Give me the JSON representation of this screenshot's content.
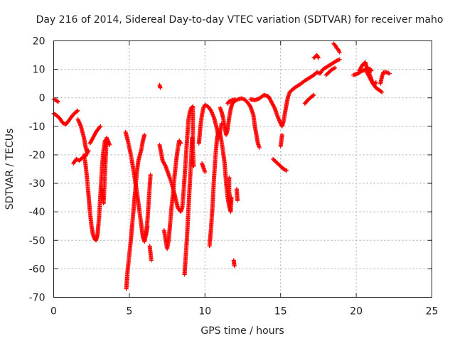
{
  "chart_data": {
    "type": "scatter",
    "title": "Day 216 of 2014, Sidereal Day-to-day VTEC variation (SDTVAR) for receiver maho",
    "xlabel": "GPS time / hours",
    "ylabel": "SDTVAR / TECUs",
    "xlim": [
      0,
      25
    ],
    "ylim": [
      -70,
      20
    ],
    "xticks": [
      0,
      5,
      10,
      15,
      20,
      25
    ],
    "yticks": [
      -70,
      -60,
      -50,
      -40,
      -30,
      -20,
      -10,
      0,
      10,
      20
    ],
    "grid": true,
    "marker": "+",
    "series": [
      {
        "name": "SDTVAR",
        "color": "#ff0000",
        "segments": [
          [
            [
              0.0,
              -5.5
            ],
            [
              0.2,
              -6.2
            ],
            [
              0.4,
              -7.2
            ],
            [
              0.6,
              -8.8
            ],
            [
              0.8,
              -9.3
            ],
            [
              1.0,
              -8.0
            ],
            [
              1.2,
              -6.5
            ],
            [
              1.4,
              -5.3
            ],
            [
              1.6,
              -4.5
            ]
          ],
          [
            [
              0.0,
              -0.5
            ],
            [
              0.2,
              -1.0
            ],
            [
              0.3,
              -1.4
            ]
          ],
          [
            [
              1.3,
              -23.0
            ],
            [
              1.5,
              -21.5
            ],
            [
              1.7,
              -22.0
            ],
            [
              1.9,
              -21.0
            ],
            [
              2.1,
              -20.5
            ],
            [
              2.3,
              -18.5
            ]
          ],
          [
            [
              1.6,
              -7.5
            ],
            [
              1.8,
              -10.0
            ],
            [
              2.0,
              -14.0
            ],
            [
              2.1,
              -17.0
            ],
            [
              2.2,
              -19.0
            ]
          ],
          [
            [
              2.0,
              -20.0
            ],
            [
              2.1,
              -23.0
            ],
            [
              2.2,
              -28.0
            ],
            [
              2.3,
              -34.0
            ],
            [
              2.4,
              -40.0
            ],
            [
              2.5,
              -45.0
            ],
            [
              2.6,
              -48.0
            ],
            [
              2.7,
              -49.5
            ],
            [
              2.8,
              -50.0
            ],
            [
              2.9,
              -48.0
            ],
            [
              3.0,
              -42.0
            ],
            [
              3.1,
              -33.0
            ],
            [
              3.2,
              -24.0
            ],
            [
              3.3,
              -18.0
            ],
            [
              3.4,
              -15.0
            ],
            [
              3.5,
              -14.5
            ],
            [
              3.6,
              -15.5
            ]
          ],
          [
            [
              2.4,
              -16.0
            ],
            [
              2.6,
              -14.0
            ],
            [
              2.8,
              -12.0
            ],
            [
              3.0,
              -10.5
            ],
            [
              3.1,
              -10.0
            ]
          ],
          [
            [
              3.2,
              -32.0
            ],
            [
              3.3,
              -37.0
            ],
            [
              3.5,
              -14.0
            ],
            [
              3.7,
              -16.5
            ]
          ],
          [
            [
              4.75,
              -12.0
            ],
            [
              4.9,
              -15.0
            ],
            [
              5.1,
              -20.0
            ],
            [
              5.2,
              -23.0
            ],
            [
              5.35,
              -28.0
            ],
            [
              5.5,
              -33.0
            ],
            [
              5.6,
              -37.0
            ],
            [
              5.75,
              -43.0
            ],
            [
              5.9,
              -49.0
            ],
            [
              6.0,
              -50.5
            ],
            [
              6.1,
              -48.0
            ],
            [
              6.2,
              -45.0
            ]
          ],
          [
            [
              4.8,
              -67.0
            ],
            [
              4.85,
              -63.0
            ],
            [
              4.9,
              -60.0
            ],
            [
              5.0,
              -55.0
            ],
            [
              5.1,
              -50.0
            ],
            [
              5.2,
              -44.0
            ],
            [
              5.3,
              -38.0
            ],
            [
              5.4,
              -32.0
            ],
            [
              5.5,
              -26.0
            ],
            [
              5.6,
              -22.0
            ],
            [
              5.8,
              -18.0
            ],
            [
              5.9,
              -15.0
            ],
            [
              6.0,
              -13.0
            ]
          ],
          [
            [
              6.1,
              -48.0
            ],
            [
              6.2,
              -43.0
            ],
            [
              6.3,
              -35.0
            ],
            [
              6.4,
              -27.0
            ]
          ],
          [
            [
              6.35,
              -52.0
            ],
            [
              6.45,
              -57.0
            ]
          ],
          [
            [
              7.0,
              4.5
            ],
            [
              7.05,
              3.5
            ]
          ],
          [
            [
              7.0,
              -16.5
            ],
            [
              7.2,
              -22.0
            ],
            [
              7.4,
              -24.0
            ],
            [
              7.6,
              -27.0
            ],
            [
              7.8,
              -30.0
            ],
            [
              8.0,
              -34.0
            ],
            [
              8.2,
              -38.5
            ],
            [
              8.4,
              -40.0
            ],
            [
              8.5,
              -38.5
            ],
            [
              8.6,
              -32.0
            ],
            [
              8.7,
              -24.0
            ],
            [
              8.8,
              -16.0
            ],
            [
              8.9,
              -8.0
            ],
            [
              9.0,
              -5.0
            ],
            [
              9.1,
              -3.5
            ],
            [
              9.2,
              -3.0
            ]
          ],
          [
            [
              7.3,
              -46.5
            ],
            [
              7.4,
              -50.0
            ],
            [
              7.5,
              -53.0
            ],
            [
              7.6,
              -50.0
            ],
            [
              7.7,
              -44.0
            ],
            [
              7.8,
              -38.0
            ],
            [
              7.9,
              -33.0
            ],
            [
              8.0,
              -27.0
            ],
            [
              8.1,
              -22.0
            ],
            [
              8.2,
              -18.0
            ],
            [
              8.3,
              -15.0
            ],
            [
              8.4,
              -16.0
            ]
          ],
          [
            [
              8.65,
              -62.0
            ],
            [
              8.7,
              -58.0
            ],
            [
              8.8,
              -50.0
            ],
            [
              8.9,
              -40.0
            ],
            [
              9.0,
              -30.0
            ],
            [
              9.1,
              -20.0
            ],
            [
              9.15,
              -14.0
            ]
          ],
          [
            [
              9.2,
              -3.5
            ],
            [
              9.2,
              -10.0
            ],
            [
              9.2,
              -18.0
            ],
            [
              9.25,
              -24.0
            ]
          ],
          [
            [
              9.6,
              -16.0
            ],
            [
              9.7,
              -10.0
            ],
            [
              9.8,
              -6.0
            ],
            [
              9.9,
              -3.5
            ],
            [
              10.0,
              -2.5
            ],
            [
              10.2,
              -3.0
            ],
            [
              10.4,
              -4.5
            ],
            [
              10.6,
              -7.0
            ],
            [
              10.8,
              -11.0
            ],
            [
              10.9,
              -14.0
            ],
            [
              11.0,
              -12.0
            ],
            [
              11.1,
              -9.0
            ]
          ],
          [
            [
              9.8,
              -23.0
            ],
            [
              10.0,
              -26.0
            ]
          ],
          [
            [
              10.3,
              -52.0
            ],
            [
              10.4,
              -46.0
            ],
            [
              10.5,
              -38.0
            ],
            [
              10.6,
              -28.0
            ],
            [
              10.7,
              -20.0
            ],
            [
              10.8,
              -14.0
            ],
            [
              10.9,
              -12.0
            ],
            [
              11.0,
              -12.5
            ],
            [
              11.1,
              -15.5
            ],
            [
              11.2,
              -19.0
            ],
            [
              11.3,
              -23.0
            ],
            [
              11.4,
              -30.0
            ],
            [
              11.5,
              -35.0
            ],
            [
              11.6,
              -38.0
            ],
            [
              11.7,
              -40.0
            ],
            [
              11.75,
              -35.0
            ]
          ],
          [
            [
              11.0,
              -3.5
            ],
            [
              11.1,
              -5.0
            ],
            [
              11.2,
              -7.0
            ],
            [
              11.3,
              -10.0
            ],
            [
              11.4,
              -13.0
            ],
            [
              11.5,
              -11.0
            ],
            [
              11.6,
              -7.0
            ],
            [
              11.7,
              -4.0
            ],
            [
              11.8,
              -2.0
            ],
            [
              12.0,
              -1.0
            ],
            [
              12.2,
              -0.5
            ],
            [
              12.4,
              -0.2
            ],
            [
              12.6,
              -0.5
            ],
            [
              12.8,
              -1.5
            ],
            [
              13.0,
              -3.0
            ],
            [
              13.2,
              -6.0
            ],
            [
              13.3,
              -10.0
            ],
            [
              13.4,
              -13.0
            ],
            [
              13.5,
              -16.0
            ],
            [
              13.6,
              -17.5
            ]
          ],
          [
            [
              11.5,
              -2.0
            ],
            [
              11.6,
              -1.2
            ],
            [
              11.8,
              -0.8
            ],
            [
              12.0,
              -0.6
            ]
          ],
          [
            [
              11.9,
              -57.0
            ],
            [
              11.95,
              -59.0
            ]
          ],
          [
            [
              12.1,
              -32.0
            ],
            [
              12.15,
              -36.0
            ]
          ],
          [
            [
              11.6,
              -28.0
            ],
            [
              11.6,
              -33.0
            ],
            [
              11.7,
              -37.0
            ]
          ],
          [
            [
              13.0,
              -0.5
            ],
            [
              13.3,
              -0.8
            ],
            [
              13.6,
              -0.2
            ],
            [
              13.9,
              1.0
            ],
            [
              14.2,
              0.5
            ],
            [
              14.4,
              -1.5
            ],
            [
              14.6,
              -3.5
            ],
            [
              14.8,
              -6.5
            ],
            [
              15.0,
              -9.0
            ],
            [
              15.1,
              -10.0
            ],
            [
              15.2,
              -8.0
            ],
            [
              15.3,
              -5.0
            ],
            [
              15.4,
              -2.0
            ],
            [
              15.5,
              0.5
            ],
            [
              15.6,
              2.0
            ],
            [
              15.8,
              3.0
            ],
            [
              16.0,
              3.8
            ],
            [
              16.3,
              4.8
            ],
            [
              16.6,
              6.0
            ],
            [
              16.9,
              7.0
            ],
            [
              17.2,
              8.0
            ],
            [
              17.4,
              9.0
            ],
            [
              17.6,
              8.5
            ],
            [
              17.8,
              10.0
            ],
            [
              18.1,
              11.0
            ],
            [
              18.4,
              12.0
            ],
            [
              18.7,
              13.0
            ],
            [
              18.9,
              13.5
            ]
          ],
          [
            [
              15.0,
              -17.0
            ],
            [
              15.1,
              -13.0
            ]
          ],
          [
            [
              14.5,
              -21.5
            ],
            [
              14.8,
              -23.0
            ],
            [
              15.0,
              -24.0
            ],
            [
              15.2,
              -25.0
            ],
            [
              15.4,
              -25.5
            ]
          ],
          [
            [
              16.6,
              -2.0
            ],
            [
              16.8,
              -0.8
            ],
            [
              17.0,
              0.2
            ],
            [
              17.2,
              1.0
            ]
          ],
          [
            [
              17.2,
              14.0
            ],
            [
              17.4,
              15.0
            ],
            [
              17.5,
              14.0
            ]
          ],
          [
            [
              18.0,
              8.0
            ],
            [
              18.2,
              9.0
            ],
            [
              18.4,
              10.0
            ],
            [
              18.6,
              10.5
            ]
          ],
          [
            [
              18.5,
              19.0
            ],
            [
              18.6,
              18.5
            ],
            [
              18.7,
              17.5
            ],
            [
              18.8,
              17.0
            ],
            [
              18.9,
              16.0
            ]
          ],
          [
            [
              19.8,
              8.0
            ],
            [
              20.1,
              8.5
            ],
            [
              20.4,
              9.5
            ],
            [
              20.7,
              10.0
            ],
            [
              20.9,
              10.2
            ],
            [
              21.0,
              9.5
            ]
          ],
          [
            [
              20.2,
              9.5
            ],
            [
              20.4,
              11.5
            ],
            [
              20.6,
              12.5
            ],
            [
              20.7,
              10.5
            ],
            [
              20.9,
              8.0
            ],
            [
              21.0,
              6.5
            ],
            [
              21.1,
              5.0
            ],
            [
              21.2,
              4.5
            ],
            [
              21.3,
              5.5
            ]
          ],
          [
            [
              20.7,
              9.0
            ],
            [
              20.9,
              7.0
            ],
            [
              21.1,
              5.0
            ],
            [
              21.3,
              3.5
            ],
            [
              21.5,
              2.8
            ],
            [
              21.7,
              2.0
            ]
          ],
          [
            [
              21.6,
              5.0
            ],
            [
              21.7,
              7.5
            ],
            [
              21.8,
              9.0
            ],
            [
              22.0,
              9.0
            ],
            [
              22.2,
              8.5
            ]
          ]
        ]
      }
    ]
  }
}
